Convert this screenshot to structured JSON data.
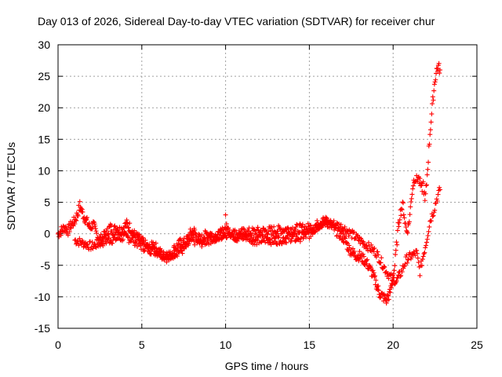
{
  "chart_data": {
    "type": "scatter",
    "title": "Day 013 of 2026, Sidereal Day-to-day VTEC variation (SDTVAR) for receiver chur",
    "xlabel": "GPS time / hours",
    "ylabel": "SDTVAR / TECUs",
    "xlim": [
      0,
      25
    ],
    "ylim": [
      -15,
      30
    ],
    "xticks": [
      0,
      5,
      10,
      15,
      20,
      25
    ],
    "yticks": [
      -15,
      -10,
      -5,
      0,
      5,
      10,
      15,
      20,
      25,
      30
    ],
    "grid": true,
    "marker": "+",
    "color": "#ff0000",
    "series": [
      {
        "name": "SDTVAR",
        "x": [
          0.0,
          0.2,
          0.4,
          0.6,
          0.8,
          1.0,
          1.2,
          1.3,
          1.5,
          1.7,
          1.9,
          2.1,
          2.3,
          2.5,
          2.7,
          2.9,
          3.1,
          3.3,
          3.5,
          3.7,
          3.9,
          4.1,
          4.3,
          4.5,
          4.7,
          4.9,
          5.1,
          5.3,
          5.5,
          5.7,
          5.9,
          6.1,
          6.3,
          6.5,
          6.7,
          6.9,
          7.1,
          7.3,
          7.5,
          7.7,
          7.9,
          8.1,
          8.3,
          8.5,
          8.7,
          8.9,
          9.1,
          9.3,
          9.5,
          9.7,
          9.9,
          10.0,
          10.2,
          10.4,
          10.6,
          10.8,
          11.0,
          11.2,
          11.4,
          11.6,
          11.8,
          12.0,
          12.2,
          12.4,
          12.6,
          12.8,
          13.0,
          13.2,
          13.4,
          13.6,
          13.8,
          14.0,
          14.2,
          14.4,
          14.6,
          14.8,
          15.0,
          15.2,
          15.4,
          15.6,
          15.8,
          16.0,
          16.2,
          16.4,
          16.6,
          16.8,
          17.0,
          17.2,
          17.4,
          17.6,
          17.8,
          18.0,
          18.2,
          18.4,
          18.6,
          18.8,
          19.0,
          19.2,
          19.4,
          19.6,
          19.8,
          20.0,
          20.1,
          20.2,
          20.3,
          20.4,
          20.5,
          20.6,
          20.7,
          20.8,
          20.9,
          21.0,
          21.1,
          21.2,
          21.3,
          21.4,
          21.5,
          21.6,
          21.7,
          21.8,
          21.9,
          22.0,
          22.1,
          22.2,
          22.3,
          22.4,
          22.5,
          22.6,
          22.7,
          22.8
        ],
        "y": [
          0.0,
          0.5,
          1.0,
          0.5,
          1.5,
          2.0,
          3.5,
          4.5,
          3.0,
          2.0,
          1.0,
          1.5,
          0.0,
          -1.0,
          -0.5,
          0.0,
          1.0,
          0.5,
          1.0,
          0.5,
          1.0,
          1.5,
          1.0,
          0.0,
          -0.5,
          -1.0,
          -1.5,
          -2.0,
          -2.5,
          -1.5,
          -2.5,
          -3.0,
          -3.5,
          -3.0,
          -3.5,
          -2.5,
          -2.0,
          -1.5,
          -1.5,
          -1.0,
          0.0,
          0.5,
          -0.5,
          -1.0,
          -0.5,
          0.0,
          0.0,
          -0.5,
          -0.5,
          0.0,
          0.5,
          1.0,
          0.5,
          0.0,
          -0.5,
          -0.5,
          -0.5,
          -0.3,
          -0.5,
          -0.8,
          -1.0,
          -0.8,
          -1.0,
          -0.8,
          -0.8,
          -1.0,
          -1.0,
          -0.8,
          -0.8,
          -0.7,
          -0.5,
          -0.5,
          -0.7,
          -0.5,
          -0.3,
          -0.2,
          0.0,
          0.5,
          1.0,
          1.5,
          1.8,
          2.0,
          1.5,
          1.0,
          0.5,
          0.0,
          -0.5,
          -1.5,
          -2.5,
          -3.0,
          -3.5,
          -3.5,
          -4.0,
          -4.5,
          -5.5,
          -6.5,
          -8.0,
          -9.5,
          -10.0,
          -10.5,
          -9.5,
          -7.0,
          -5.0,
          -2.0,
          1.0,
          3.0,
          4.0,
          4.5,
          2.0,
          0.5,
          1.0,
          3.0,
          6.0,
          8.0,
          9.0,
          8.5,
          9.0,
          8.0,
          7.0,
          8.0,
          5.0,
          8.0,
          12.0,
          16.0,
          19.0,
          22.0,
          24.5,
          26.0,
          26.5,
          26.0
        ],
        "x2": [
          1.0,
          2.0,
          3.0,
          4.0,
          4.5,
          5.0,
          6.0,
          6.6,
          7.0,
          7.5,
          8.0,
          8.5,
          9.0,
          9.6,
          10.0,
          15.0,
          15.5,
          16.0,
          16.5,
          17.0,
          17.5,
          18.0,
          18.5,
          19.0,
          19.3,
          19.6,
          19.9,
          20.2,
          20.5,
          20.8,
          21.1,
          21.4,
          21.6,
          21.8,
          22.0,
          22.2,
          22.4,
          22.6,
          22.8
        ],
        "y2": [
          -1.0,
          -2.0,
          -1.0,
          -0.5,
          -1.0,
          -2.0,
          -3.0,
          -4.0,
          -3.0,
          -2.5,
          -1.0,
          -1.5,
          -1.0,
          -0.5,
          0.0,
          1.0,
          1.5,
          2.0,
          1.5,
          1.0,
          0.0,
          -1.0,
          -2.0,
          -3.0,
          -4.5,
          -6.0,
          -7.0,
          -7.5,
          -6.0,
          -4.0,
          -3.5,
          -3.0,
          -6.0,
          -3.5,
          -1.0,
          2.0,
          3.5,
          5.5,
          7.0
        ]
      }
    ]
  }
}
